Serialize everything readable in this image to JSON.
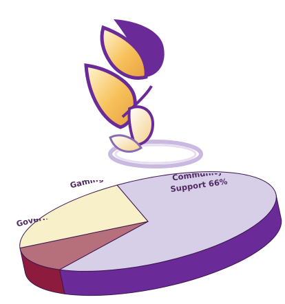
{
  "chart_data": {
    "type": "pie",
    "categories": [
      "Community Support",
      "Government",
      "Gaming"
    ],
    "values": [
      66,
      12,
      22
    ],
    "value_labels": [
      "66%",
      "12%",
      "22%"
    ],
    "colors": [
      "#d7cfe8",
      "#b5707c",
      "#f8f0c8"
    ],
    "side_colors": [
      "#6a2b98",
      "#8c1b3e",
      "#c9b77a"
    ]
  }
}
